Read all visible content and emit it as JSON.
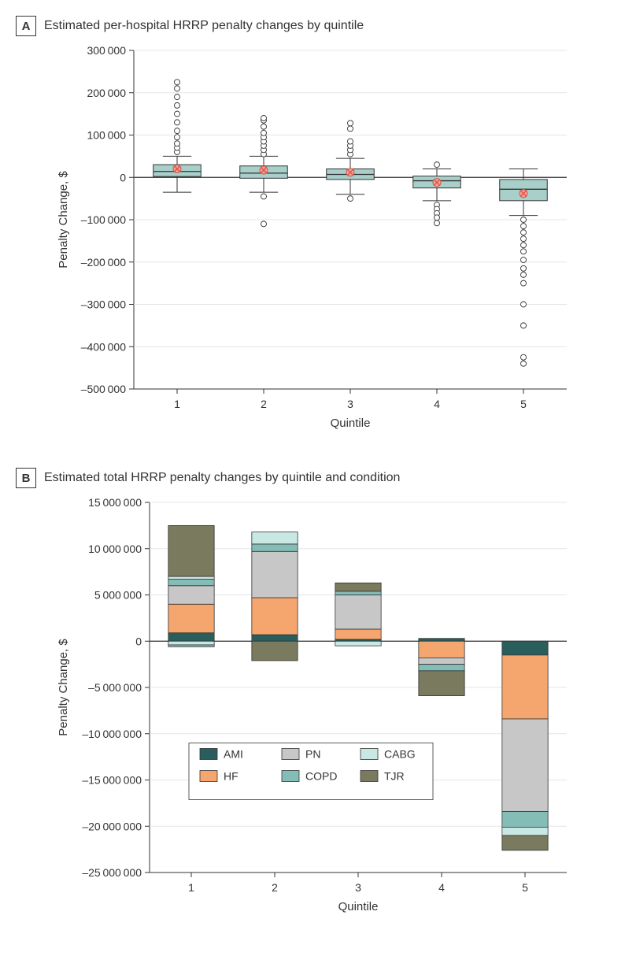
{
  "panelA": {
    "letter": "A",
    "title": "Estimated per-hospital HRRP penalty changes by quintile",
    "type": "boxplot",
    "xlabel": "Quintile",
    "ylabel": "Penalty Change, $",
    "ylim": [
      -500000,
      300000
    ],
    "ytick_step": 100000,
    "yticks": [
      -500000,
      -400000,
      -300000,
      -200000,
      -100000,
      0,
      100000,
      200000,
      300000
    ],
    "ytick_labels": [
      "–500 000",
      "–400 000",
      "–300 000",
      "–200 000",
      "–100 000",
      "0",
      "100 000",
      "200 000",
      "300 000"
    ],
    "categories": [
      "1",
      "2",
      "3",
      "4",
      "5"
    ],
    "box_fill": "#a8cfc9",
    "box_stroke": "#333333",
    "whisker_color": "#333333",
    "mean_marker_fill": "#f2a38f",
    "mean_marker_stroke": "#d9534f",
    "outlier_fill": "#ffffff",
    "outlier_stroke": "#333333",
    "grid_color": "#e5e5e5",
    "zero_line_color": "#333333",
    "background_color": "#ffffff",
    "data": [
      {
        "q1": 2000,
        "median": 14000,
        "q3": 30000,
        "whisker_low": -35000,
        "whisker_high": 50000,
        "mean": 20000,
        "outliers": [
          60000,
          70000,
          80000,
          95000,
          110000,
          130000,
          150000,
          170000,
          190000,
          210000,
          225000
        ]
      },
      {
        "q1": -2000,
        "median": 10000,
        "q3": 27000,
        "whisker_low": -35000,
        "whisker_high": 50000,
        "mean": 17000,
        "outliers": [
          -45000,
          -110000,
          55000,
          65000,
          75000,
          85000,
          95000,
          105000,
          120000,
          135000,
          140000
        ]
      },
      {
        "q1": -5000,
        "median": 7000,
        "q3": 20000,
        "whisker_low": -40000,
        "whisker_high": 45000,
        "mean": 12000,
        "outliers": [
          -50000,
          55000,
          65000,
          75000,
          85000,
          115000,
          128000
        ]
      },
      {
        "q1": -25000,
        "median": -8000,
        "q3": 3000,
        "whisker_low": -55000,
        "whisker_high": 20000,
        "mean": -12000,
        "outliers": [
          -65000,
          -75000,
          -85000,
          -95000,
          -108000,
          30000
        ]
      },
      {
        "q1": -55000,
        "median": -28000,
        "q3": -5000,
        "whisker_low": -90000,
        "whisker_high": 20000,
        "mean": -38000,
        "outliers": [
          -100000,
          -115000,
          -130000,
          -145000,
          -160000,
          -175000,
          -195000,
          -215000,
          -230000,
          -250000,
          -300000,
          -350000,
          -425000,
          -440000
        ]
      }
    ]
  },
  "panelB": {
    "letter": "B",
    "title": "Estimated total HRRP penalty changes by quintile and condition",
    "type": "stacked-bar-diverging",
    "xlabel": "Quintile",
    "ylabel": "Penalty Change, $",
    "ylim": [
      -25000000,
      15000000
    ],
    "ytick_step": 5000000,
    "yticks": [
      -25000000,
      -20000000,
      -15000000,
      -10000000,
      -5000000,
      0,
      5000000,
      10000000,
      15000000
    ],
    "ytick_labels": [
      "–25 000 000",
      "–20 000 000",
      "–15 000 000",
      "–10 000 000",
      "–5 000 000",
      "0",
      "5 000 000",
      "10 000 000",
      "15 000 000"
    ],
    "categories": [
      "1",
      "2",
      "3",
      "4",
      "5"
    ],
    "series_order": [
      "AMI",
      "HF",
      "PN",
      "COPD",
      "CABG",
      "TJR"
    ],
    "series_colors": {
      "AMI": "#2a5e5d",
      "HF": "#f5a66f",
      "PN": "#c7c7c7",
      "COPD": "#84bcb6",
      "CABG": "#c9e8e3",
      "TJR": "#7a7a5f"
    },
    "bar_stroke": "#333333",
    "grid_color": "#e5e5e5",
    "zero_line_color": "#333333",
    "background_color": "#ffffff",
    "bar_width": 0.55,
    "data": [
      {
        "AMI": 900000,
        "HF": 3100000,
        "PN": 2000000,
        "COPD": 700000,
        "CABG": 300000,
        "TJR": 5500000,
        "neg": {
          "CABG": -400000,
          "COPD": -200000
        }
      },
      {
        "AMI": 700000,
        "HF": 4000000,
        "PN": 5000000,
        "COPD": 800000,
        "CABG": 1300000,
        "TJR": -2100000,
        "neg": {}
      },
      {
        "AMI": 200000,
        "HF": 1100000,
        "PN": 3700000,
        "COPD": 400000,
        "TJR": 900000,
        "CABG": -500000,
        "neg": {}
      },
      {
        "AMI": 300000,
        "HF": -1800000,
        "PN": -700000,
        "COPD": -700000,
        "CABG": 0,
        "TJR": -2700000,
        "neg": {}
      },
      {
        "AMI": -1500000,
        "HF": -6900000,
        "PN": -10000000,
        "COPD": -1700000,
        "CABG": -900000,
        "TJR": -1600000,
        "neg": {}
      }
    ],
    "legend": {
      "rows": [
        [
          "AMI",
          "PN",
          "CABG"
        ],
        [
          "HF",
          "COPD",
          "TJR"
        ]
      ]
    }
  }
}
